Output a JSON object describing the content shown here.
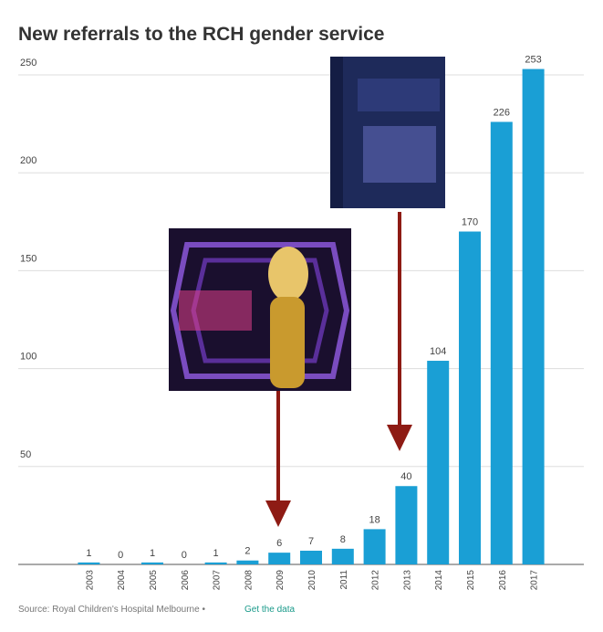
{
  "chart_data": {
    "type": "bar",
    "title": "New referrals to the RCH gender service",
    "categories": [
      "2003",
      "2004",
      "2005",
      "2006",
      "2007",
      "2008",
      "2009",
      "2010",
      "2011",
      "2012",
      "2013",
      "2014",
      "2015",
      "2016",
      "2017"
    ],
    "values": [
      1,
      0,
      1,
      0,
      1,
      2,
      6,
      7,
      8,
      18,
      40,
      104,
      170,
      226,
      253
    ],
    "color": "#1a9fd5",
    "ylim": [
      0,
      250
    ],
    "yticks": [
      50,
      100,
      150,
      200,
      250
    ],
    "grid": true,
    "source": "Source: Royal Children's Hospital Melbourne •",
    "link": "Get the data"
  }
}
